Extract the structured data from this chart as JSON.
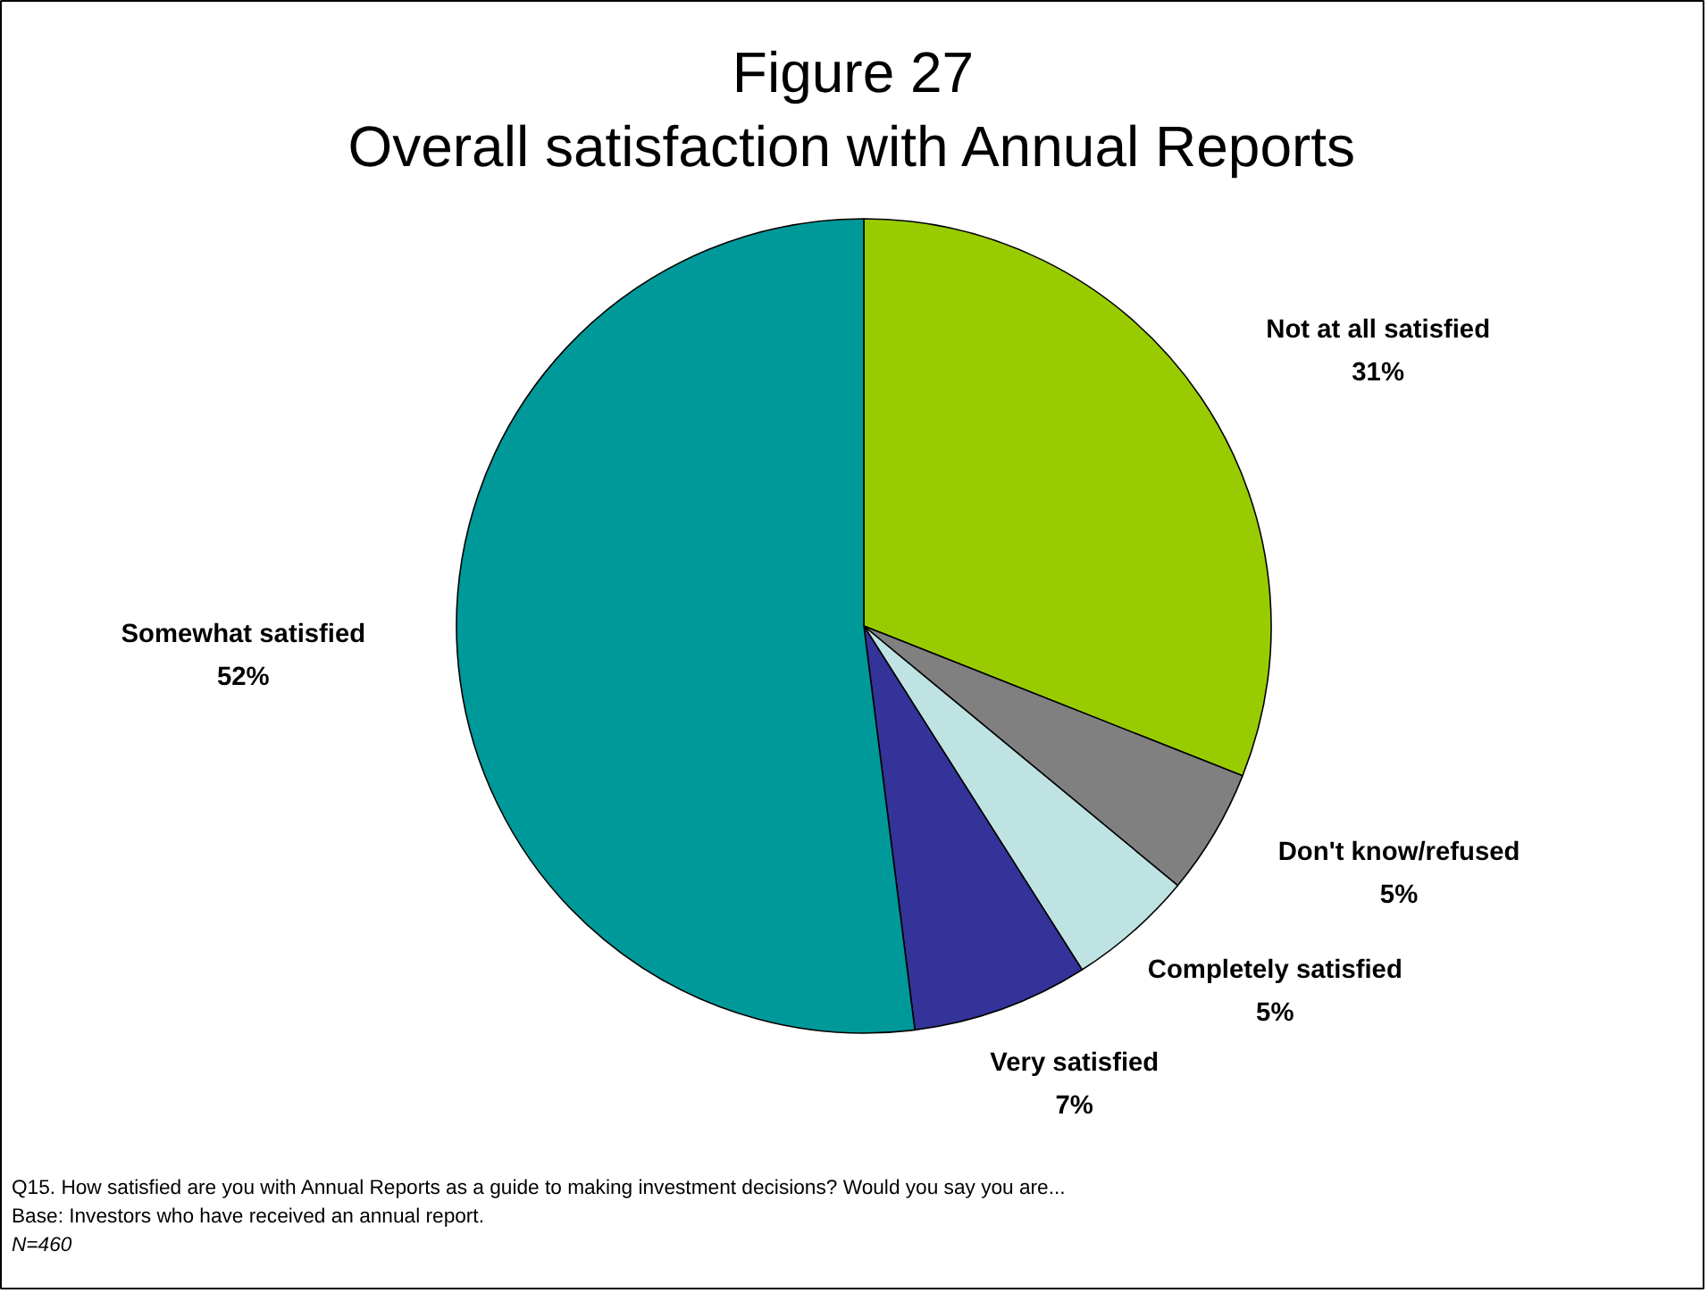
{
  "chart_data": {
    "type": "pie",
    "title": "Figure 27\nOverall satisfaction with Annual Reports",
    "categories": [
      "Not at all satisfied",
      "Don't know/refused",
      "Completely satisfied",
      "Very satisfied",
      "Somewhat satisfied"
    ],
    "values": [
      31,
      5,
      5,
      7,
      52
    ],
    "value_labels": [
      "31%",
      "5%",
      "5%",
      "7%",
      "52%"
    ],
    "colors": [
      "#99cc00",
      "#808080",
      "#bfe3e3",
      "#333399",
      "#009999"
    ],
    "annotations": [
      "Q15. How satisfied are you with Annual Reports as a guide to making investment decisions? Would you say you are...",
      "Base: Investors who have received an annual report.",
      "N=460"
    ]
  }
}
